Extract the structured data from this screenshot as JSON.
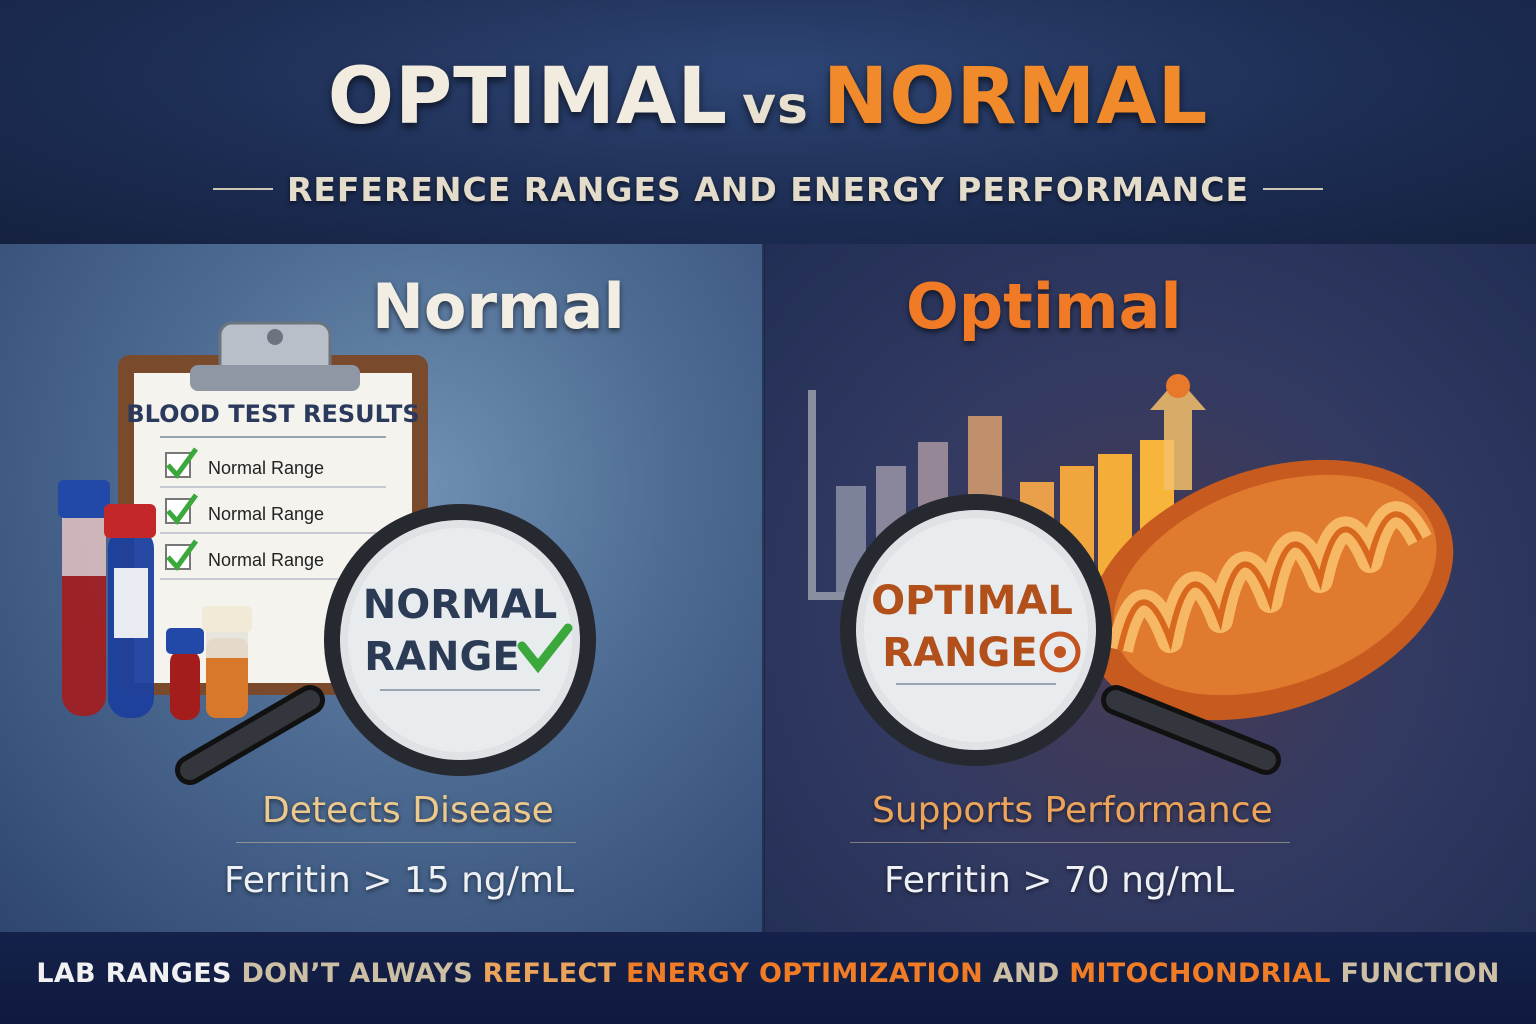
{
  "header": {
    "title_optimal": "OPTIMAL",
    "title_vs": "vs",
    "title_normal": "NORMAL",
    "subtitle": "REFERENCE RANGES AND ENERGY PERFORMANCE"
  },
  "left_panel": {
    "heading": "Normal",
    "clipboard": {
      "title": "BLOOD TEST RESULTS",
      "items": [
        "Normal Range",
        "Normal Range",
        "Normal Range"
      ]
    },
    "magnifier_line1": "NORMAL",
    "magnifier_line2": "RANGE",
    "caption": "Detects Disease",
    "ferritin": "Ferritin > 15 ng/mL"
  },
  "right_panel": {
    "heading": "Optimal",
    "magnifier_line1": "OPTIMAL",
    "magnifier_line2": "RANGE",
    "caption": "Supports Performance",
    "ferritin": "Ferritin > 70 ng/mL"
  },
  "footer": {
    "part1": "LAB RANGES",
    "part2": "DON’T ALWAYS",
    "part3": "REFLECT",
    "part4": "ENERGY OPTIMIZATION",
    "part5": "AND",
    "part6": "MITOCHONDRIAL",
    "part7": "FUNCTION"
  },
  "icons": {
    "check": "check-icon",
    "target": "target-icon",
    "arrow_up": "arrow-up-icon"
  },
  "colors": {
    "accent_orange": "#f07a25",
    "header_bg": "#1c2c52",
    "left_panel_bg": "#4d6b92",
    "right_panel_bg": "#323a62",
    "check_green": "#3aa83a"
  }
}
